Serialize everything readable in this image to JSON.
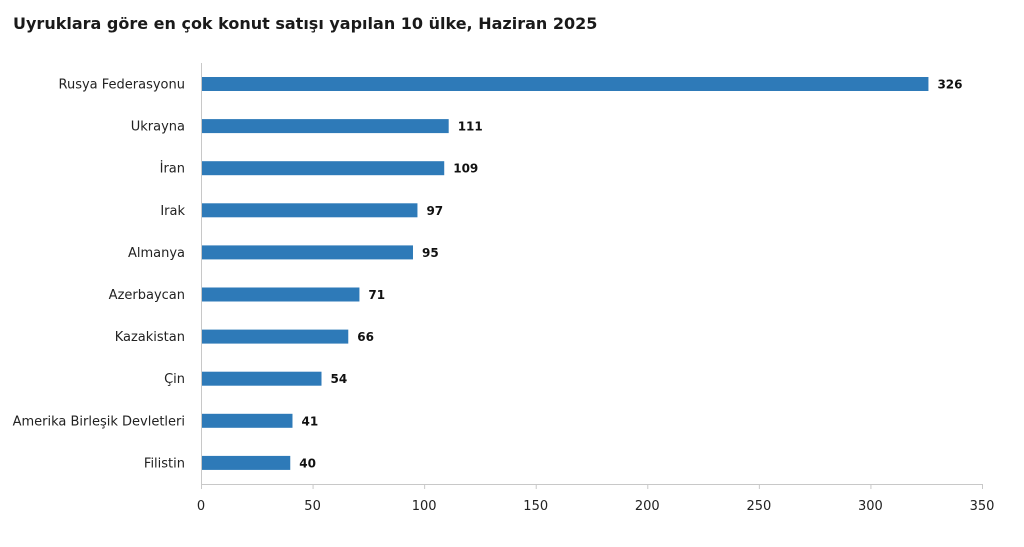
{
  "chart_data": {
    "type": "bar",
    "orientation": "horizontal",
    "title": "Uyruklara göre en çok konut satışı yapılan 10 ülke, Haziran 2025",
    "categories": [
      "Rusya Federasyonu",
      "Ukrayna",
      "İran",
      "Irak",
      "Almanya",
      "Azerbaycan",
      "Kazakistan",
      "Çin",
      "Amerika Birleşik Devletleri",
      "Filistin"
    ],
    "values": [
      326,
      111,
      109,
      97,
      95,
      71,
      66,
      54,
      41,
      40
    ],
    "xlim": [
      0,
      350
    ],
    "x_ticks": [
      0,
      50,
      100,
      150,
      200,
      250,
      300,
      350
    ],
    "xlabel": "",
    "ylabel": "",
    "grid": false,
    "data_labels": true,
    "bar_color": "#2e7ab8",
    "axis_color": "#c8c8c8"
  }
}
